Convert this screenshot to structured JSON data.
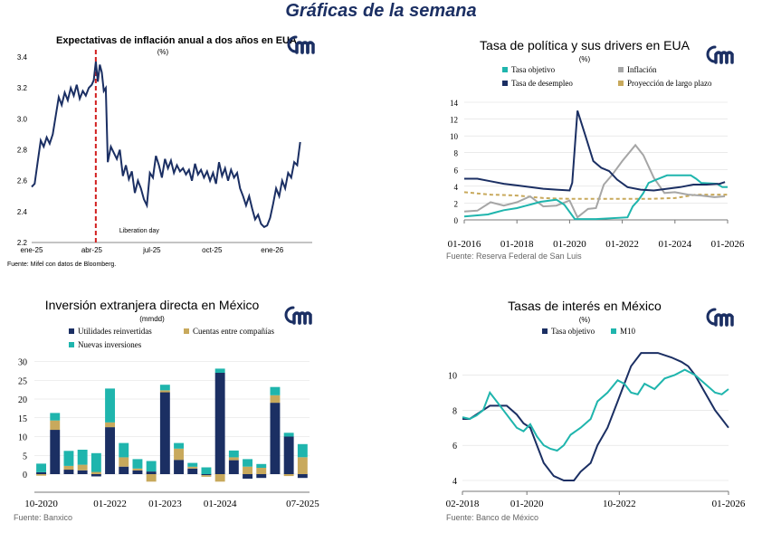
{
  "page": {
    "title": "Gráficas de la semana"
  },
  "colors": {
    "navy": "#1b2f63",
    "teal": "#1fb5ad",
    "gray": "#a6a6a6",
    "gold": "#c8a95c",
    "red": "#d21f1f",
    "axis": "#555555",
    "grid": "#dddddd"
  },
  "chart_data": [
    {
      "id": "c1",
      "type": "line",
      "title": "Expectativas de inflación anual a dos años en EUA",
      "subtitle": "(%)",
      "source": "Fuente: Mifel con datos de Bloomberg.",
      "ylim": [
        2.2,
        3.4
      ],
      "yticks": [
        "2.2",
        "2.4",
        "2.6",
        "2.8",
        "3.0",
        "3.2",
        "3.4"
      ],
      "xlim": [
        0,
        14
      ],
      "xticks": [
        {
          "x": 0,
          "label": "ene-25"
        },
        {
          "x": 3,
          "label": "abr-25"
        },
        {
          "x": 6,
          "label": "jul-25"
        },
        {
          "x": 9,
          "label": "oct-25"
        },
        {
          "x": 12,
          "label": "ene-26"
        }
      ],
      "marker": {
        "x": 3.2,
        "label": "Liberation day"
      },
      "series": [
        {
          "name": "Expectativa 2 años",
          "x": [
            0,
            0.15,
            0.3,
            0.45,
            0.6,
            0.75,
            0.9,
            1.05,
            1.2,
            1.35,
            1.5,
            1.65,
            1.8,
            1.95,
            2.1,
            2.25,
            2.4,
            2.55,
            2.7,
            2.85,
            3.0,
            3.1,
            3.2,
            3.3,
            3.4,
            3.5,
            3.6,
            3.7,
            3.8,
            3.95,
            4.1,
            4.25,
            4.4,
            4.55,
            4.7,
            4.85,
            5.0,
            5.15,
            5.3,
            5.45,
            5.6,
            5.75,
            5.9,
            6.05,
            6.2,
            6.35,
            6.5,
            6.65,
            6.8,
            6.95,
            7.1,
            7.25,
            7.4,
            7.55,
            7.7,
            7.85,
            8.0,
            8.15,
            8.3,
            8.45,
            8.6,
            8.75,
            8.9,
            9.05,
            9.2,
            9.35,
            9.5,
            9.65,
            9.8,
            9.95,
            10.1,
            10.25,
            10.4,
            10.55,
            10.7,
            10.85,
            11.0,
            11.15,
            11.3,
            11.45,
            11.6,
            11.75,
            11.9,
            12.05,
            12.2,
            12.35,
            12.5,
            12.65,
            12.8,
            12.95,
            13.1,
            13.25,
            13.4
          ],
          "values": [
            2.56,
            2.58,
            2.72,
            2.86,
            2.82,
            2.88,
            2.84,
            2.9,
            3.02,
            3.14,
            3.09,
            3.17,
            3.12,
            3.2,
            3.15,
            3.22,
            3.13,
            3.18,
            3.15,
            3.2,
            3.22,
            3.25,
            3.37,
            3.24,
            3.35,
            3.3,
            3.18,
            3.2,
            2.72,
            2.82,
            2.78,
            2.74,
            2.8,
            2.63,
            2.7,
            2.61,
            2.66,
            2.52,
            2.6,
            2.55,
            2.48,
            2.44,
            2.65,
            2.62,
            2.76,
            2.7,
            2.62,
            2.74,
            2.68,
            2.73,
            2.65,
            2.7,
            2.66,
            2.68,
            2.64,
            2.67,
            2.6,
            2.71,
            2.64,
            2.67,
            2.62,
            2.66,
            2.6,
            2.65,
            2.58,
            2.72,
            2.63,
            2.68,
            2.6,
            2.67,
            2.62,
            2.65,
            2.55,
            2.5,
            2.44,
            2.5,
            2.42,
            2.35,
            2.38,
            2.32,
            2.3,
            2.31,
            2.36,
            2.45,
            2.55,
            2.5,
            2.6,
            2.55,
            2.65,
            2.62,
            2.72,
            2.7,
            2.85
          ]
        }
      ]
    },
    {
      "id": "c2",
      "type": "line",
      "title": "Tasa de política y sus drivers en EUA",
      "subtitle": "(%)",
      "source": "Fuente: Reserva Federal de San Luis",
      "ylim": [
        0,
        14
      ],
      "yticks": [
        "0",
        "2",
        "4",
        "6",
        "8",
        "10",
        "12",
        "14"
      ],
      "xlim": [
        2016,
        2026
      ],
      "xticks": [
        {
          "x": 2016,
          "label": "01-2016"
        },
        {
          "x": 2018,
          "label": "01-2018"
        },
        {
          "x": 2020,
          "label": "01-2020"
        },
        {
          "x": 2022,
          "label": "01-2022"
        },
        {
          "x": 2024,
          "label": "01-2024"
        },
        {
          "x": 2026,
          "label": "01-2026"
        }
      ],
      "series": [
        {
          "name": "Tasa objetivo",
          "color": "teal",
          "dashed": false,
          "x": [
            2016,
            2016.9,
            2017.2,
            2017.5,
            2018.0,
            2018.3,
            2018.6,
            2018.9,
            2019.5,
            2019.8,
            2020.2,
            2021.0,
            2022.2,
            2022.4,
            2022.6,
            2022.8,
            2023.0,
            2023.3,
            2023.7,
            2024.6,
            2024.8,
            2025.0,
            2025.6,
            2025.8,
            2026.0
          ],
          "values": [
            0.4,
            0.65,
            0.9,
            1.15,
            1.4,
            1.65,
            1.9,
            2.15,
            2.4,
            1.8,
            0.1,
            0.1,
            0.3,
            1.6,
            2.3,
            3.2,
            4.4,
            4.8,
            5.3,
            5.3,
            4.9,
            4.4,
            4.3,
            3.9,
            3.9
          ]
        },
        {
          "name": "Tasa de desempleo",
          "color": "navy",
          "dashed": false,
          "x": [
            2016,
            2016.5,
            2017,
            2017.5,
            2018,
            2018.5,
            2019,
            2019.5,
            2020.0,
            2020.1,
            2020.3,
            2020.6,
            2020.9,
            2021.2,
            2021.5,
            2021.8,
            2022.2,
            2022.7,
            2023.2,
            2023.7,
            2024.2,
            2024.7,
            2025.2,
            2025.7,
            2025.9
          ],
          "values": [
            4.9,
            4.9,
            4.6,
            4.3,
            4.1,
            3.9,
            3.7,
            3.6,
            3.5,
            4.4,
            13.0,
            10.0,
            7.0,
            6.2,
            5.8,
            4.8,
            3.9,
            3.6,
            3.5,
            3.7,
            3.9,
            4.2,
            4.2,
            4.3,
            4.5
          ]
        },
        {
          "name": "Inflación",
          "color": "gray",
          "dashed": false,
          "x": [
            2016,
            2016.5,
            2017,
            2017.5,
            2018,
            2018.5,
            2019,
            2019.5,
            2020.0,
            2020.3,
            2020.7,
            2021.0,
            2021.3,
            2021.6,
            2022.0,
            2022.5,
            2022.8,
            2023.2,
            2023.6,
            2024.0,
            2024.5,
            2025.0,
            2025.5,
            2025.9
          ],
          "values": [
            1.0,
            1.1,
            2.1,
            1.7,
            2.1,
            2.8,
            1.6,
            1.7,
            2.3,
            0.3,
            1.3,
            1.4,
            4.2,
            5.3,
            7.0,
            8.9,
            7.7,
            5.0,
            3.2,
            3.3,
            3.0,
            2.9,
            2.7,
            2.8
          ]
        },
        {
          "name": "Proyección de largo plazo",
          "color": "gold",
          "dashed": true,
          "x": [
            2016,
            2017,
            2018,
            2019,
            2020,
            2021,
            2022,
            2023,
            2024,
            2024.8,
            2025.5,
            2026
          ],
          "values": [
            3.3,
            3.0,
            2.9,
            2.6,
            2.5,
            2.5,
            2.5,
            2.5,
            2.6,
            3.0,
            3.0,
            3.0
          ]
        }
      ],
      "legend": [
        "Tasa objetivo",
        "Inflación",
        "Tasa de desempleo",
        "Proyección de largo plazo"
      ]
    },
    {
      "id": "c3",
      "type": "bar",
      "stacked": true,
      "title": "Inversión extranjera directa en México",
      "subtitle": "(mmdd)",
      "source": "Fuente: Banxico",
      "ylim": [
        -5,
        30
      ],
      "yticks": [
        "0",
        "5",
        "10",
        "15",
        "20",
        "25",
        "30"
      ],
      "xticks": [
        {
          "index": 0,
          "label": "10-2020"
        },
        {
          "index": 5,
          "label": "01-2022"
        },
        {
          "index": 9,
          "label": "01-2023"
        },
        {
          "index": 13,
          "label": "01-2024"
        },
        {
          "index": 19,
          "label": "07-2025"
        }
      ],
      "legend": [
        "Utilidades reinvertidas",
        "Cuentas entre compañías",
        "Nuevas inversiones"
      ],
      "series": [
        {
          "name": "Utilidades reinvertidas",
          "color": "navy",
          "values": [
            0.5,
            11.8,
            1.2,
            1.0,
            -0.6,
            12.5,
            2.0,
            1.0,
            0.7,
            21.8,
            3.8,
            1.5,
            -0.3,
            27.0,
            3.7,
            -1.2,
            -1.0,
            19.0,
            10.0,
            -1.0
          ]
        },
        {
          "name": "Cuentas entre compañías",
          "color": "gold",
          "values": [
            -0.4,
            2.5,
            1.0,
            1.5,
            0.6,
            1.3,
            2.5,
            0.5,
            -2.0,
            0.5,
            3.0,
            0.5,
            -0.4,
            -2.0,
            0.8,
            2.0,
            1.7,
            2.0,
            -0.5,
            4.5
          ]
        },
        {
          "name": "Nuevas inversiones",
          "color": "teal",
          "values": [
            2.3,
            2.0,
            4.0,
            4.0,
            5.0,
            9.0,
            3.8,
            2.5,
            2.8,
            1.5,
            1.5,
            1.0,
            1.8,
            1.1,
            1.8,
            2.0,
            1.0,
            2.2,
            1.0,
            3.5
          ]
        }
      ]
    },
    {
      "id": "c4",
      "type": "line",
      "title": "Tasas de interés en México",
      "subtitle": "(%)",
      "source": "Fuente: Banco de México",
      "ylim": [
        4,
        11
      ],
      "yticks": [
        "4",
        "6",
        "8",
        "10"
      ],
      "xlim": [
        2018.083,
        2026.0
      ],
      "xticks": [
        {
          "x": 2018.083,
          "label": "02-2018"
        },
        {
          "x": 2020.0,
          "label": "01-2020"
        },
        {
          "x": 2022.75,
          "label": "10-2022"
        },
        {
          "x": 2026.0,
          "label": "01-2026"
        }
      ],
      "legend": [
        "Tasa objetivo",
        "M10"
      ],
      "series": [
        {
          "name": "Tasa objetivo",
          "color": "navy",
          "dashed": false,
          "x": [
            2018.083,
            2018.3,
            2018.5,
            2018.9,
            2019.4,
            2019.7,
            2019.9,
            2020.1,
            2020.3,
            2020.5,
            2020.8,
            2021.1,
            2021.4,
            2021.6,
            2021.9,
            2022.1,
            2022.4,
            2022.7,
            2022.9,
            2023.1,
            2023.4,
            2023.9,
            2024.3,
            2024.6,
            2024.8,
            2025.0,
            2025.3,
            2025.6,
            2025.8,
            2026.0
          ],
          "values": [
            7.5,
            7.5,
            7.75,
            8.25,
            8.25,
            7.75,
            7.25,
            7.0,
            6.0,
            5.0,
            4.25,
            4.0,
            4.0,
            4.5,
            5.0,
            6.0,
            7.0,
            8.5,
            9.5,
            10.5,
            11.25,
            11.25,
            11.0,
            10.75,
            10.5,
            10.0,
            9.0,
            8.0,
            7.5,
            7.0
          ]
        },
        {
          "name": "M10",
          "color": "teal",
          "dashed": false,
          "x": [
            2018.083,
            2018.3,
            2018.5,
            2018.7,
            2018.9,
            2019.1,
            2019.3,
            2019.5,
            2019.7,
            2019.9,
            2020.1,
            2020.3,
            2020.5,
            2020.7,
            2020.9,
            2021.1,
            2021.3,
            2021.6,
            2021.9,
            2022.1,
            2022.4,
            2022.7,
            2022.9,
            2023.1,
            2023.3,
            2023.5,
            2023.8,
            2024.1,
            2024.4,
            2024.7,
            2025.0,
            2025.3,
            2025.6,
            2025.8,
            2026.0
          ],
          "values": [
            7.6,
            7.5,
            7.7,
            8.0,
            9.0,
            8.5,
            8.0,
            7.5,
            7.0,
            6.8,
            7.2,
            6.5,
            6.0,
            5.8,
            5.7,
            6.0,
            6.6,
            7.0,
            7.5,
            8.5,
            9.0,
            9.7,
            9.5,
            9.0,
            8.9,
            9.5,
            9.2,
            9.8,
            10.0,
            10.3,
            10.0,
            9.5,
            9.0,
            8.9,
            9.2
          ]
        }
      ]
    }
  ]
}
